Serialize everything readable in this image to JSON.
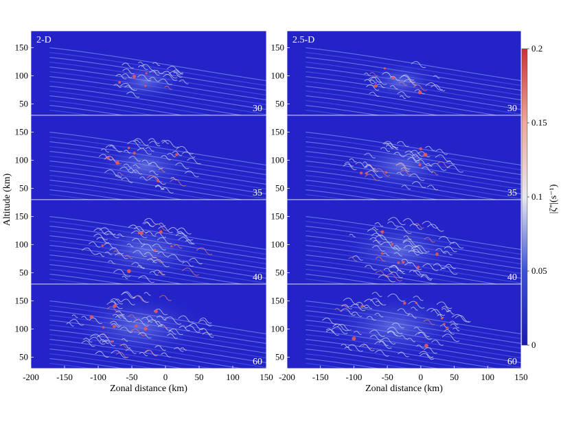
{
  "chart_data": [
    {
      "type": "heatmap",
      "title": "2-D",
      "xlabel": "Zonal distance (km)",
      "ylabel": "Altitude (km)",
      "xlim": [
        -200,
        150
      ],
      "ylim": [
        30,
        180
      ],
      "x_ticks": [
        "-200",
        "-150",
        "-100",
        "-50",
        "0",
        "50",
        "100",
        "150"
      ],
      "y_ticks": [
        "150",
        "100",
        "50"
      ],
      "panels": [
        "30",
        "35",
        "40",
        "60"
      ]
    },
    {
      "type": "heatmap",
      "title": "2.5-D",
      "xlabel": "Zonal distance (km)",
      "ylabel": "",
      "xlim": [
        -200,
        150
      ],
      "ylim": [
        30,
        180
      ],
      "x_ticks": [
        "-200",
        "-150",
        "-100",
        "-50",
        "0",
        "50",
        "100",
        "150"
      ],
      "y_ticks": [
        "150",
        "100",
        "50"
      ],
      "panels": [
        "30",
        "35",
        "40",
        "60"
      ]
    }
  ],
  "colorbar": {
    "label": "|ζ''|(s⁻¹)",
    "ticks": [
      "0.2",
      "0.15",
      "0.1",
      "0.05",
      "0"
    ],
    "range": [
      0,
      0.2
    ],
    "colors": [
      "#1e1ec8",
      "#3a4fd9",
      "#eaeaf2",
      "#f0b0a0",
      "#d03a3a"
    ]
  }
}
